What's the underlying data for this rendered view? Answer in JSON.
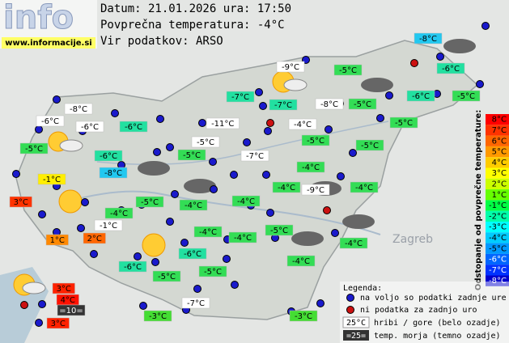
{
  "logo": {
    "text": "info",
    "url": "www.informacije.si"
  },
  "header": {
    "date_line": "Datum: 21.01.2026 ura: 17:50",
    "avg_line": "Povprečna temperatura: -4°C",
    "source_line": "Vir podatkov: ARSO"
  },
  "map_labels": [
    "Zagreb"
  ],
  "stations": [
    {
      "label": "-8°C",
      "bg": "#22c8f0"
    },
    {
      "label": "-9°C",
      "bg": "#ffffff"
    },
    {
      "label": "-5°C",
      "bg": "#33dd55"
    },
    {
      "label": "-6°C",
      "bg": "#22e0a0"
    },
    {
      "label": "-7°C",
      "bg": "#22e0a0"
    },
    {
      "label": "-7°C",
      "bg": "#22e0a0"
    },
    {
      "label": "-8°C",
      "bg": "#ffffff"
    },
    {
      "label": "-5°C",
      "bg": "#33dd55"
    },
    {
      "label": "-6°C",
      "bg": "#22e0a0"
    },
    {
      "label": "-5°C",
      "bg": "#33dd55"
    },
    {
      "label": "-8°C",
      "bg": "#ffffff"
    },
    {
      "label": "-6°C",
      "bg": "#ffffff"
    },
    {
      "label": "-6°C",
      "bg": "#ffffff"
    },
    {
      "label": "-6°C",
      "bg": "#22e0a0"
    },
    {
      "label": "-11°C",
      "bg": "#ffffff"
    },
    {
      "label": "-4°C",
      "bg": "#ffffff"
    },
    {
      "label": "-5°C",
      "bg": "#33dd55"
    },
    {
      "label": "-5°C",
      "bg": "#33dd55"
    },
    {
      "label": "-5°C",
      "bg": "#ffffff"
    },
    {
      "label": "-5°C",
      "bg": "#33dd55"
    },
    {
      "label": "-5°C",
      "bg": "#33dd55"
    },
    {
      "label": "-6°C",
      "bg": "#22e0a0"
    },
    {
      "label": "-5°C",
      "bg": "#33dd55"
    },
    {
      "label": "-7°C",
      "bg": "#ffffff"
    },
    {
      "label": "-4°C",
      "bg": "#33dd55"
    },
    {
      "label": "-8°C",
      "bg": "#22c8f0"
    },
    {
      "label": "-1°C",
      "bg": "#ffee00"
    },
    {
      "label": "-4°C",
      "bg": "#33dd55"
    },
    {
      "label": "-9°C",
      "bg": "#ffffff"
    },
    {
      "label": "-4°C",
      "bg": "#33dd55"
    },
    {
      "label": "-5°C",
      "bg": "#33dd55"
    },
    {
      "label": "-4°C",
      "bg": "#33dd55"
    },
    {
      "label": "-4°C",
      "bg": "#33dd55"
    },
    {
      "label": "3°C",
      "bg": "#ff3300"
    },
    {
      "label": "-4°C",
      "bg": "#33dd55"
    },
    {
      "label": "-1°C",
      "bg": "#ffffff"
    },
    {
      "label": "-4°C",
      "bg": "#33dd55"
    },
    {
      "label": "-4°C",
      "bg": "#33dd55"
    },
    {
      "label": "-5°C",
      "bg": "#33dd55"
    },
    {
      "label": "-4°C",
      "bg": "#33dd55"
    },
    {
      "label": "1°C",
      "bg": "#ff8800"
    },
    {
      "label": "2°C",
      "bg": "#ff6600"
    },
    {
      "label": "-6°C",
      "bg": "#22e0a0"
    },
    {
      "label": "-6°C",
      "bg": "#22e0a0"
    },
    {
      "label": "-5°C",
      "bg": "#33dd55"
    },
    {
      "label": "-5°C",
      "bg": "#33dd55"
    },
    {
      "label": "-4°C",
      "bg": "#33dd55"
    },
    {
      "label": "3°C",
      "bg": "#ff2200"
    },
    {
      "label": "4°C",
      "bg": "#ff1100"
    },
    {
      "label": "=10=",
      "bg": "#333333"
    },
    {
      "label": "-7°C",
      "bg": "#ffffff"
    },
    {
      "label": "-3°C",
      "bg": "#44dd33"
    },
    {
      "label": "-3°C",
      "bg": "#44dd33"
    },
    {
      "label": "3°C",
      "bg": "#ff2200"
    }
  ],
  "scale": {
    "title": "Odstopanje od povprečne temperature:",
    "steps": [
      {
        "label": "8°C",
        "color": "#ff0000"
      },
      {
        "label": "7°C",
        "color": "#ff3300"
      },
      {
        "label": "6°C",
        "color": "#ff6600"
      },
      {
        "label": "5°C",
        "color": "#ff9900"
      },
      {
        "label": "4°C",
        "color": "#ffcc00"
      },
      {
        "label": "3°C",
        "color": "#ffff00"
      },
      {
        "label": "2°C",
        "color": "#ccff00"
      },
      {
        "label": "1°C",
        "color": "#66ff00"
      },
      {
        "label": "-1°C",
        "color": "#00ff44"
      },
      {
        "label": "-2°C",
        "color": "#00ffaa"
      },
      {
        "label": "-3°C",
        "color": "#00ffff"
      },
      {
        "label": "-4°C",
        "color": "#00ccff"
      },
      {
        "label": "-5°C",
        "color": "#0099ff"
      },
      {
        "label": "-6°C",
        "color": "#0066ff"
      },
      {
        "label": "-7°C",
        "color": "#0033ff"
      },
      {
        "label": "-8°C",
        "color": "#0000cc"
      }
    ]
  },
  "legend": {
    "title": "Legenda:",
    "items": [
      {
        "text": "na voljo so podatki zadnje ure"
      },
      {
        "text": "ni podatka za zadnjo uro"
      },
      {
        "sample": "25°C",
        "text": "hribi / gore (belo ozadje)"
      },
      {
        "sample": "=25=",
        "text": "temp. morja (temno ozadje)"
      }
    ]
  }
}
